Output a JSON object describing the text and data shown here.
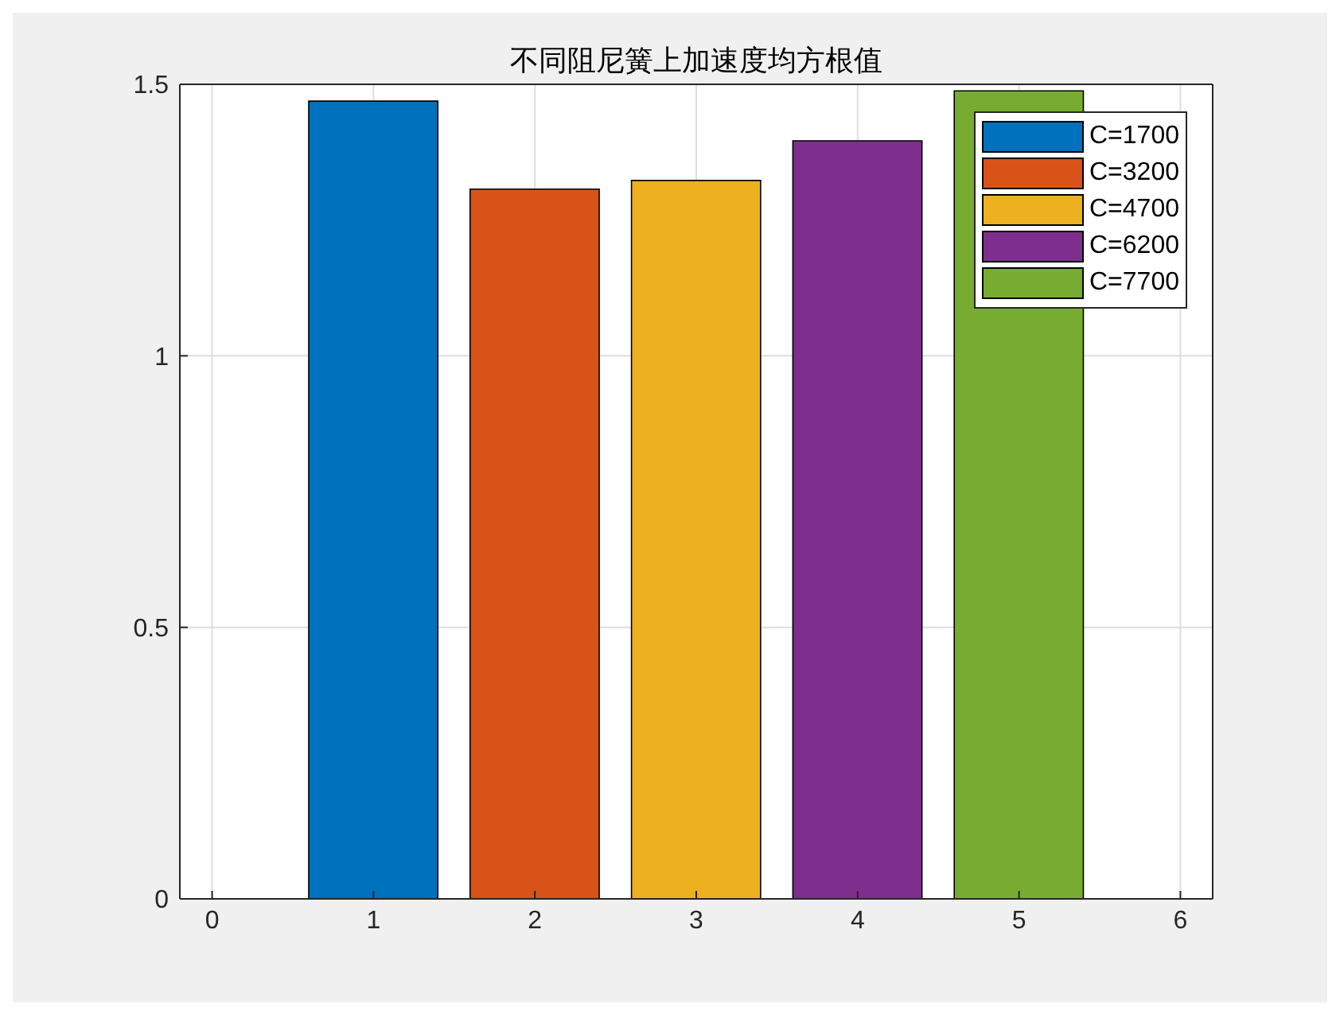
{
  "chart_data": {
    "type": "bar",
    "title": "不同阻尼簧上加速度均方根值",
    "xlim": [
      -0.2,
      6.2
    ],
    "xticks": [
      0,
      1,
      2,
      3,
      4,
      5,
      6
    ],
    "ylim": [
      0,
      1.5
    ],
    "yticks": [
      0,
      0.5,
      1,
      1.5
    ],
    "grid": true,
    "legend": "top right",
    "series": [
      {
        "name": "C=1700",
        "color": "#0072bd",
        "x": [
          1
        ],
        "values": [
          1.469
        ]
      },
      {
        "name": "C=3200",
        "color": "#d95319",
        "x": [
          2
        ],
        "values": [
          1.307
        ]
      },
      {
        "name": "C=4700",
        "color": "#edb120",
        "x": [
          3
        ],
        "values": [
          1.323
        ]
      },
      {
        "name": "C=6200",
        "color": "#7e2f8e",
        "x": [
          4
        ],
        "values": [
          1.396
        ]
      },
      {
        "name": "C=7700",
        "color": "#77ac30",
        "x": [
          5
        ],
        "values": [
          1.488
        ]
      }
    ]
  }
}
